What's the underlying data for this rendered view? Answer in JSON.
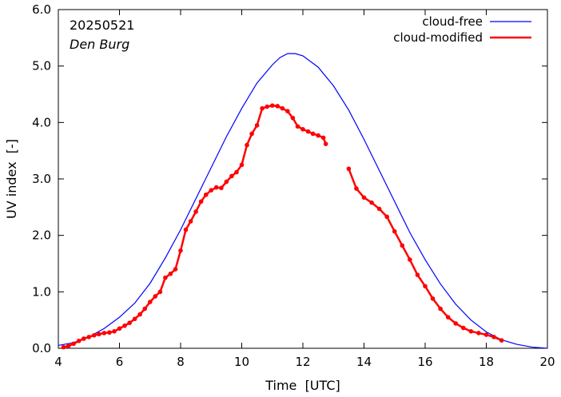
{
  "chart_data": {
    "type": "line",
    "title": "",
    "annotations": {
      "date": "20250521",
      "station": "Den Burg"
    },
    "xlabel": "Time  [UTC]",
    "ylabel": "UV index  [-]",
    "xlim": [
      4,
      20
    ],
    "ylim": [
      0,
      6
    ],
    "xticks": [
      4,
      6,
      8,
      10,
      12,
      14,
      16,
      18,
      20
    ],
    "yticks": [
      "0.0",
      "1.0",
      "2.0",
      "3.0",
      "4.0",
      "5.0",
      "6.0"
    ],
    "legend_position": "top-right",
    "grid": false,
    "series": [
      {
        "name": "cloud-free",
        "color": "#0000ff",
        "x": [
          4.0,
          4.5,
          5.0,
          5.5,
          6.0,
          6.5,
          7.0,
          7.5,
          8.0,
          8.5,
          9.0,
          9.5,
          10.0,
          10.5,
          11.0,
          11.25,
          11.5,
          11.75,
          12.0,
          12.5,
          13.0,
          13.5,
          14.0,
          14.5,
          15.0,
          15.5,
          16.0,
          16.5,
          17.0,
          17.5,
          18.0,
          18.5,
          19.0,
          19.5,
          20.0
        ],
        "y": [
          0.05,
          0.1,
          0.2,
          0.35,
          0.55,
          0.8,
          1.15,
          1.6,
          2.1,
          2.65,
          3.2,
          3.75,
          4.25,
          4.7,
          5.02,
          5.15,
          5.22,
          5.22,
          5.18,
          4.98,
          4.65,
          4.22,
          3.7,
          3.15,
          2.6,
          2.05,
          1.57,
          1.14,
          0.78,
          0.5,
          0.29,
          0.15,
          0.07,
          0.02,
          0.0
        ]
      },
      {
        "name": "cloud-modified",
        "color": "#ff0000",
        "segments": [
          {
            "x": [
              4.17,
              4.33,
              4.5,
              4.67,
              4.83,
              5.0,
              5.17,
              5.33,
              5.5,
              5.67,
              5.83,
              6.0,
              6.17,
              6.33,
              6.5,
              6.67,
              6.83,
              7.0,
              7.17,
              7.33,
              7.5,
              7.67,
              7.83,
              8.0,
              8.17,
              8.33,
              8.5,
              8.67,
              8.83,
              9.0,
              9.17,
              9.33,
              9.5,
              9.67,
              9.83,
              10.0,
              10.17,
              10.33,
              10.5,
              10.67,
              10.83,
              11.0,
              11.17,
              11.33,
              11.5,
              11.67,
              11.83,
              12.0,
              12.17,
              12.33,
              12.5,
              12.67,
              12.75
            ],
            "y": [
              0.02,
              0.04,
              0.08,
              0.13,
              0.17,
              0.2,
              0.23,
              0.25,
              0.27,
              0.28,
              0.3,
              0.35,
              0.4,
              0.45,
              0.52,
              0.6,
              0.7,
              0.82,
              0.92,
              1.0,
              1.25,
              1.32,
              1.4,
              1.73,
              2.1,
              2.25,
              2.42,
              2.6,
              2.72,
              2.8,
              2.85,
              2.84,
              2.95,
              3.05,
              3.12,
              3.25,
              3.6,
              3.8,
              3.95,
              4.25,
              4.28,
              4.3,
              4.29,
              4.25,
              4.2,
              4.08,
              3.93,
              3.88,
              3.84,
              3.8,
              3.77,
              3.73,
              3.62
            ]
          },
          {
            "x": [
              13.5,
              13.75,
              14.0,
              14.25,
              14.5,
              14.75,
              15.0,
              15.25,
              15.5,
              15.75,
              16.0,
              16.25,
              16.5,
              16.75,
              17.0,
              17.25,
              17.5,
              17.75,
              18.0,
              18.25,
              18.5
            ],
            "y": [
              3.18,
              2.83,
              2.67,
              2.58,
              2.47,
              2.33,
              2.07,
              1.82,
              1.57,
              1.3,
              1.1,
              0.88,
              0.7,
              0.55,
              0.44,
              0.36,
              0.3,
              0.27,
              0.24,
              0.2,
              0.14
            ]
          }
        ]
      }
    ]
  }
}
